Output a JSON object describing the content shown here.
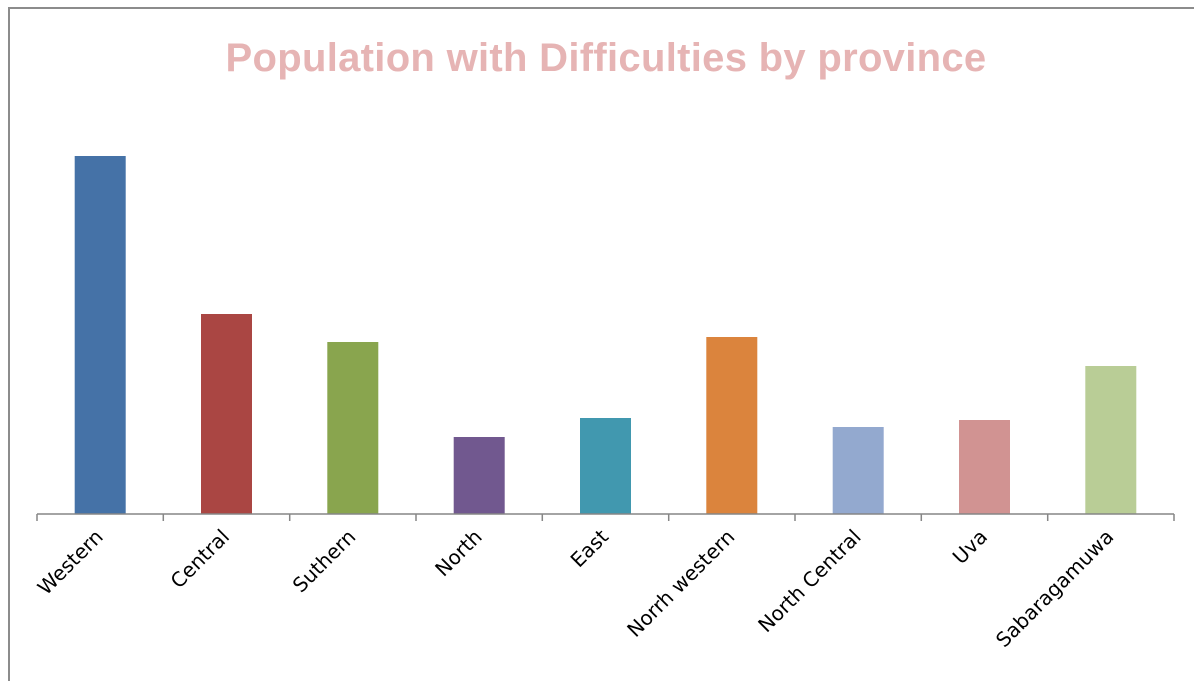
{
  "chart_data": {
    "type": "bar",
    "title": "Population with Difficulties by province",
    "title_color": "#e6b4b4",
    "xlabel": "",
    "ylabel": "",
    "categories": [
      "Western",
      "Central",
      "Suthern",
      "North",
      "East",
      "Norrh western",
      "North Central",
      "Uva",
      "Sabaragamuwa"
    ],
    "values": [
      358,
      200,
      172,
      77,
      96,
      177,
      87,
      94,
      148
    ],
    "bar_colors": [
      "#4572a7",
      "#aa4643",
      "#89a54e",
      "#71588f",
      "#4198af",
      "#db843d",
      "#93a9cf",
      "#d19392",
      "#b9cd96"
    ],
    "ylim": [
      0,
      400
    ],
    "grid": false,
    "legend": "none"
  }
}
